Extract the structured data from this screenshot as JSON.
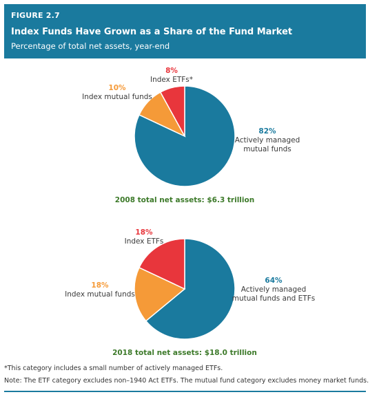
{
  "figure": {
    "label": "FIGURE 2.7",
    "title": "Index Funds Have Grown as a Share of the Fund Market",
    "subtitle": "Percentage of total net assets, year-end"
  },
  "chart_data": [
    {
      "type": "pie",
      "caption": "2008 total net assets: $6.3 trillion",
      "slices": [
        {
          "key": "index-etfs",
          "pct_label": "8%",
          "lines": [
            "Index ETFs*"
          ],
          "value": 8,
          "color": "#e8363c"
        },
        {
          "key": "index-mutual-funds",
          "pct_label": "10%",
          "lines": [
            "Index mutual funds"
          ],
          "value": 10,
          "color": "#f59a38"
        },
        {
          "key": "actively-managed",
          "pct_label": "82%",
          "lines": [
            "Actively managed",
            "mutual funds"
          ],
          "value": 82,
          "color": "#1a7a9e"
        }
      ]
    },
    {
      "type": "pie",
      "caption": "2018 total net assets: $18.0 trillion",
      "slices": [
        {
          "key": "index-etfs",
          "pct_label": "18%",
          "lines": [
            "Index ETFs"
          ],
          "value": 18,
          "color": "#e8363c"
        },
        {
          "key": "index-mutual-funds",
          "pct_label": "18%",
          "lines": [
            "Index mutual funds"
          ],
          "value": 18,
          "color": "#f59a38"
        },
        {
          "key": "actively-managed",
          "pct_label": "64%",
          "lines": [
            "Actively managed",
            "mutual funds and ETFs"
          ],
          "value": 64,
          "color": "#1a7a9e"
        }
      ]
    }
  ],
  "colors": {
    "header_bg": "#1a7a9e",
    "caption_text": "#3d7a2a",
    "etf": "#e8363c",
    "index_mutual": "#f59a38",
    "active": "#1a7a9e"
  },
  "footnotes": {
    "asterisk": "*This category includes a small number of actively managed ETFs.",
    "note": "Note: The ETF category excludes non–1940 Act ETFs. The mutual fund category excludes money market funds."
  }
}
